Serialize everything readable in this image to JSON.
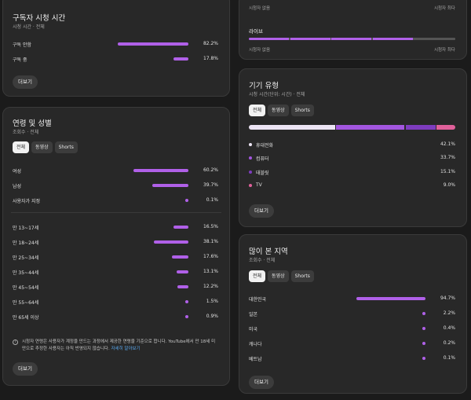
{
  "sub_watch": {
    "title": "구독자 시청 시간",
    "subtitle": "시청 시간 · 전체",
    "rows": [
      {
        "label": "구독 안함",
        "pct": "82.2%",
        "value": 82.2
      },
      {
        "label": "구독 중",
        "pct": "17.8%",
        "value": 17.8
      }
    ],
    "more": "더보기"
  },
  "age_gender": {
    "title": "연령 및 성별",
    "subtitle": "조회수 · 전체",
    "tabs": [
      "전체",
      "동영상",
      "Shorts"
    ],
    "gender": [
      {
        "label": "여성",
        "pct": "60.2%",
        "value": 60.2
      },
      {
        "label": "남성",
        "pct": "39.7%",
        "value": 39.7
      },
      {
        "label": "사용자가 지정",
        "pct": "0.1%",
        "value": 0.1
      }
    ],
    "ages": [
      {
        "label": "만 13~17세",
        "pct": "16.5%",
        "value": 16.5
      },
      {
        "label": "만 18~24세",
        "pct": "38.1%",
        "value": 38.1
      },
      {
        "label": "만 25~34세",
        "pct": "17.6%",
        "value": 17.6
      },
      {
        "label": "만 35~44세",
        "pct": "13.1%",
        "value": 13.1
      },
      {
        "label": "만 45~54세",
        "pct": "12.2%",
        "value": 12.2
      },
      {
        "label": "만 55~64세",
        "pct": "1.5%",
        "value": 1.5
      },
      {
        "label": "만 65세 이상",
        "pct": "0.9%",
        "value": 0.9
      }
    ],
    "note": "시청자 연령은 사용자가 계정을 만드는 과정에서 제공한 연령을 기준으로 합니다. YouTube에서 만 18세 미만으로 추정한 사용자는 아직 반영되지 않습니다.",
    "note_link": "자세히 알아보기",
    "more": "더보기"
  },
  "top_strip": {
    "row1_left": "시청자 없음",
    "row1_right": "시청자 최다",
    "live_label": "라이브",
    "live_segments": [
      1,
      1,
      1,
      1,
      0
    ],
    "row2_left": "시청자 없음",
    "row2_right": "시청자 최다"
  },
  "device": {
    "title": "기기 유형",
    "subtitle": "시청 시간(단위: 시간) · 전체",
    "tabs": [
      "전체",
      "동영상",
      "Shorts"
    ],
    "colors": [
      "#ece4f4",
      "#a356e0",
      "#7e3cbf",
      "#e0609a"
    ],
    "items": [
      {
        "label": "휴대전화",
        "pct": "42.1%",
        "value": 42.1
      },
      {
        "label": "컴퓨터",
        "pct": "33.7%",
        "value": 33.7
      },
      {
        "label": "태블릿",
        "pct": "15.1%",
        "value": 15.1
      },
      {
        "label": "TV",
        "pct": "9.0%",
        "value": 9.0
      }
    ],
    "more": "더보기"
  },
  "geo": {
    "title": "많이 본 지역",
    "subtitle": "조회수 · 전체",
    "tabs": [
      "전체",
      "동영상",
      "Shorts"
    ],
    "rows": [
      {
        "label": "대한민국",
        "pct": "94.7%",
        "value": 94.7
      },
      {
        "label": "일본",
        "pct": "2.2%",
        "value": 2.2
      },
      {
        "label": "미국",
        "pct": "0.4%",
        "value": 0.4
      },
      {
        "label": "캐나다",
        "pct": "0.2%",
        "value": 0.2
      },
      {
        "label": "베트남",
        "pct": "0.1%",
        "value": 0.1
      }
    ],
    "more": "더보기"
  }
}
